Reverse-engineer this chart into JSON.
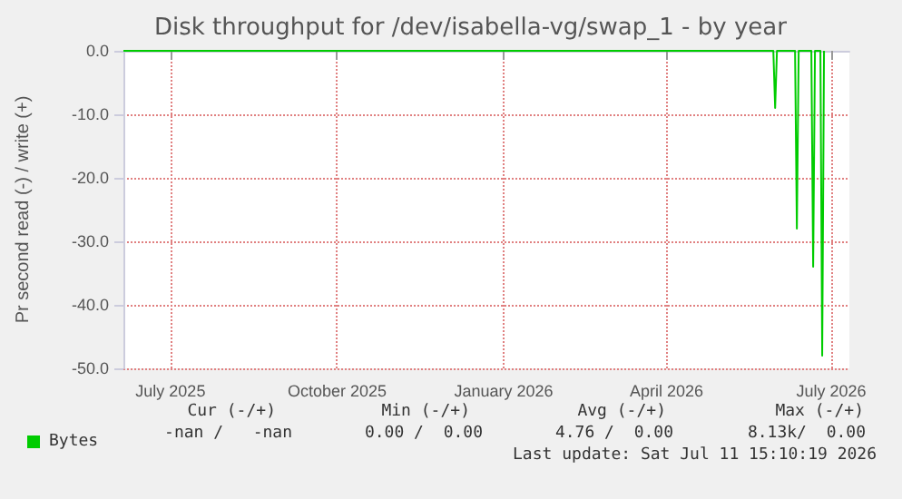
{
  "chart_data": {
    "type": "line",
    "title": "Disk throughput for /dev/isabella-vg/swap_1 - by year",
    "ylabel": "Pr second read (-) / write (+)",
    "x": [
      "2025-06-05",
      "2026-05-30",
      "2026-05-31",
      "2026-06-01",
      "2026-06-11",
      "2026-06-12",
      "2026-06-13",
      "2026-06-20",
      "2026-06-21",
      "2026-06-22",
      "2026-06-25",
      "2026-06-26",
      "2026-06-27"
    ],
    "series": [
      {
        "name": "Bytes",
        "color": "#00cc00",
        "values": [
          0,
          0,
          -9,
          0,
          0,
          -28,
          0,
          0,
          -34,
          0,
          0,
          -48,
          0
        ]
      }
    ],
    "xlim": [
      "2025-06-05",
      "2026-07-11"
    ],
    "xticks": [
      {
        "value": "2025-07-01",
        "label": "July 2025"
      },
      {
        "value": "2025-10-01",
        "label": "October 2025"
      },
      {
        "value": "2026-01-01",
        "label": "January 2026"
      },
      {
        "value": "2026-04-01",
        "label": "April 2026"
      },
      {
        "value": "2026-07-01",
        "label": "July 2026"
      }
    ],
    "ylim": [
      -50,
      0
    ],
    "yticks": [
      {
        "value": -50,
        "label": "-50.0"
      },
      {
        "value": -40,
        "label": "-40.0"
      },
      {
        "value": -30,
        "label": "-30.0"
      },
      {
        "value": -20,
        "label": "-20.0"
      },
      {
        "value": -10,
        "label": "-10.0"
      },
      {
        "value": 0,
        "label": "0.0"
      }
    ],
    "grid": true,
    "legend": "bottom left",
    "marker": "none",
    "line_style": "solid",
    "annotations": [
      "Cur (-/+)",
      "Min (-/+)",
      "Avg (-/+)",
      "Max (-/+)",
      "-nan /   -nan",
      "0.00 /  0.00",
      "4.76 /  0.00",
      "8.13k/  0.00",
      "Last update: Sat Jul 11 15:10:19 2026"
    ]
  }
}
